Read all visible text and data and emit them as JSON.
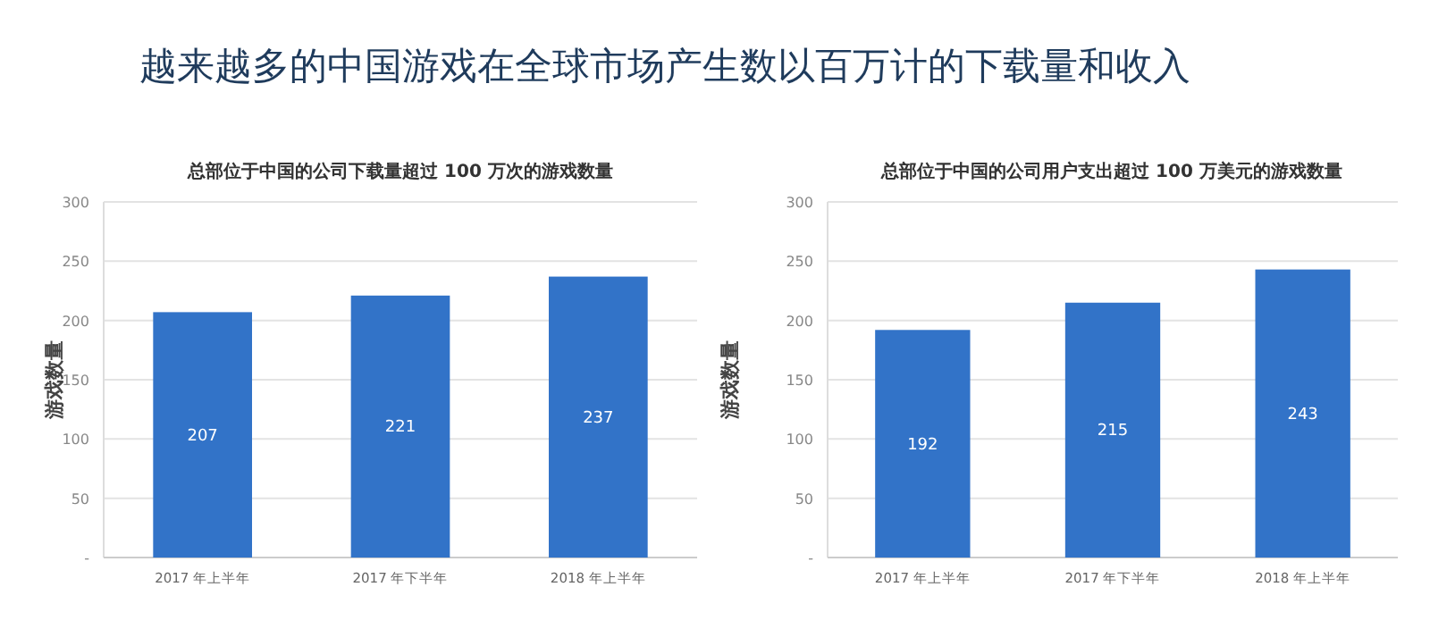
{
  "chart_data": [
    {
      "type": "bar",
      "annotations": [
        "越来越多的中国游戏在全球市场产生数以百万计的下载量和收入"
      ],
      "title": "总部位于中国的公司下载量超过 100 万次的游戏数量",
      "ylabel": "游戏数量",
      "categories": [
        "2017 年上半年",
        "2017 年下半年",
        "2018 年上半年"
      ],
      "values": [
        207,
        221,
        237
      ],
      "color": "#3273c8",
      "data_labels": true,
      "ylim": [
        0,
        300
      ],
      "yticks": [
        {
          "value": 0,
          "label": "-"
        },
        50,
        100,
        150,
        200,
        250,
        300
      ],
      "grid": "y"
    },
    {
      "type": "bar",
      "title": "总部位于中国的公司用户支出超过 100 万美元的游戏数量",
      "ylabel": "游戏数量",
      "categories": [
        "2017 年上半年",
        "2017 年下半年",
        "2018 年上半年"
      ],
      "values": [
        192,
        215,
        243
      ],
      "color": "#3273c8",
      "data_labels": true,
      "ylim": [
        0,
        300
      ],
      "yticks": [
        {
          "value": 0,
          "label": "-"
        },
        50,
        100,
        150,
        200,
        250,
        300
      ],
      "grid": "y"
    }
  ]
}
